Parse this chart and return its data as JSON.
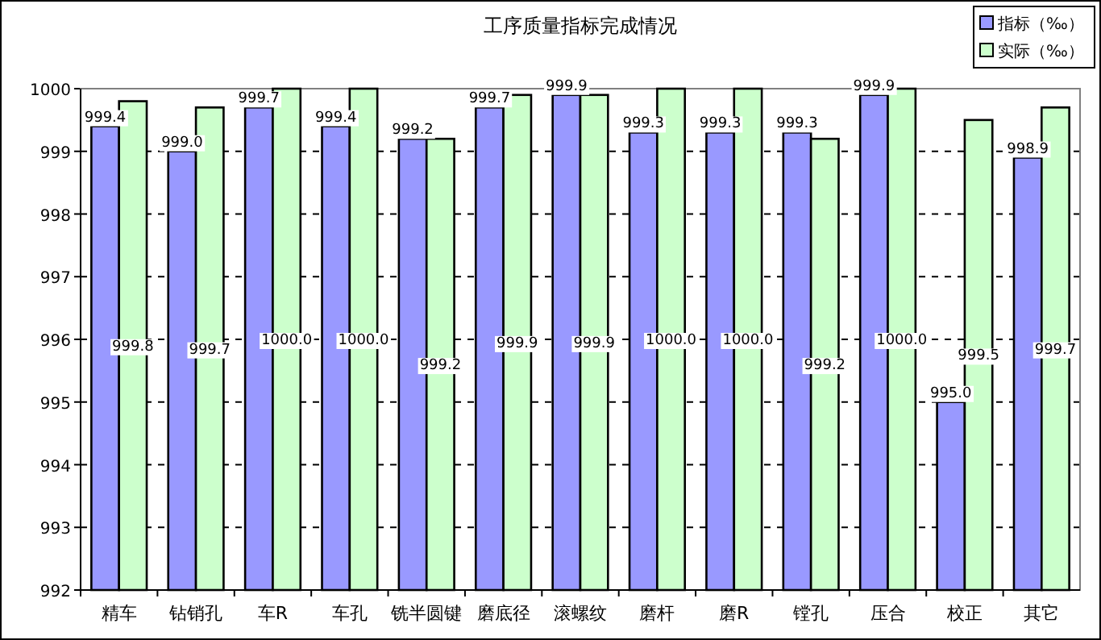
{
  "chart_data": {
    "type": "bar",
    "title": "工序质量指标完成情况",
    "categories": [
      "精车",
      "钻销孔",
      "车R",
      "车孔",
      "铣半圆键",
      "磨底径",
      "滚螺纹",
      "磨杆",
      "磨R",
      "镗孔",
      "压合",
      "校正",
      "其它"
    ],
    "series": [
      {
        "name": "指标（‰）",
        "color": "#9999ff",
        "values": [
          999.4,
          999.0,
          999.7,
          999.4,
          999.2,
          999.7,
          999.9,
          999.3,
          999.3,
          999.3,
          999.9,
          995.0,
          998.9
        ],
        "value_labels": [
          "999.4",
          "999.0",
          "999.7",
          "999.4",
          "999.2",
          "999.7",
          "999.9",
          "999.3",
          "999.3",
          "999.3",
          "999.9",
          "995.0",
          "998.9"
        ]
      },
      {
        "name": "实际（‰）",
        "color": "#ccffcc",
        "values": [
          999.8,
          999.7,
          1000.0,
          1000.0,
          999.2,
          999.9,
          999.9,
          1000.0,
          1000.0,
          999.2,
          1000.0,
          999.5,
          999.7
        ],
        "value_labels": [
          "999.8",
          "999.7",
          "1000.0",
          "1000.0",
          "999.2",
          "999.9",
          "999.9",
          "1000.0",
          "1000.0",
          "999.2",
          "1000.0",
          "999.5",
          "999.7"
        ]
      }
    ],
    "ylim": [
      992,
      1000
    ],
    "yticks": [
      992,
      993,
      994,
      995,
      996,
      997,
      998,
      999,
      1000
    ],
    "grid": "y",
    "legend": "top right"
  }
}
